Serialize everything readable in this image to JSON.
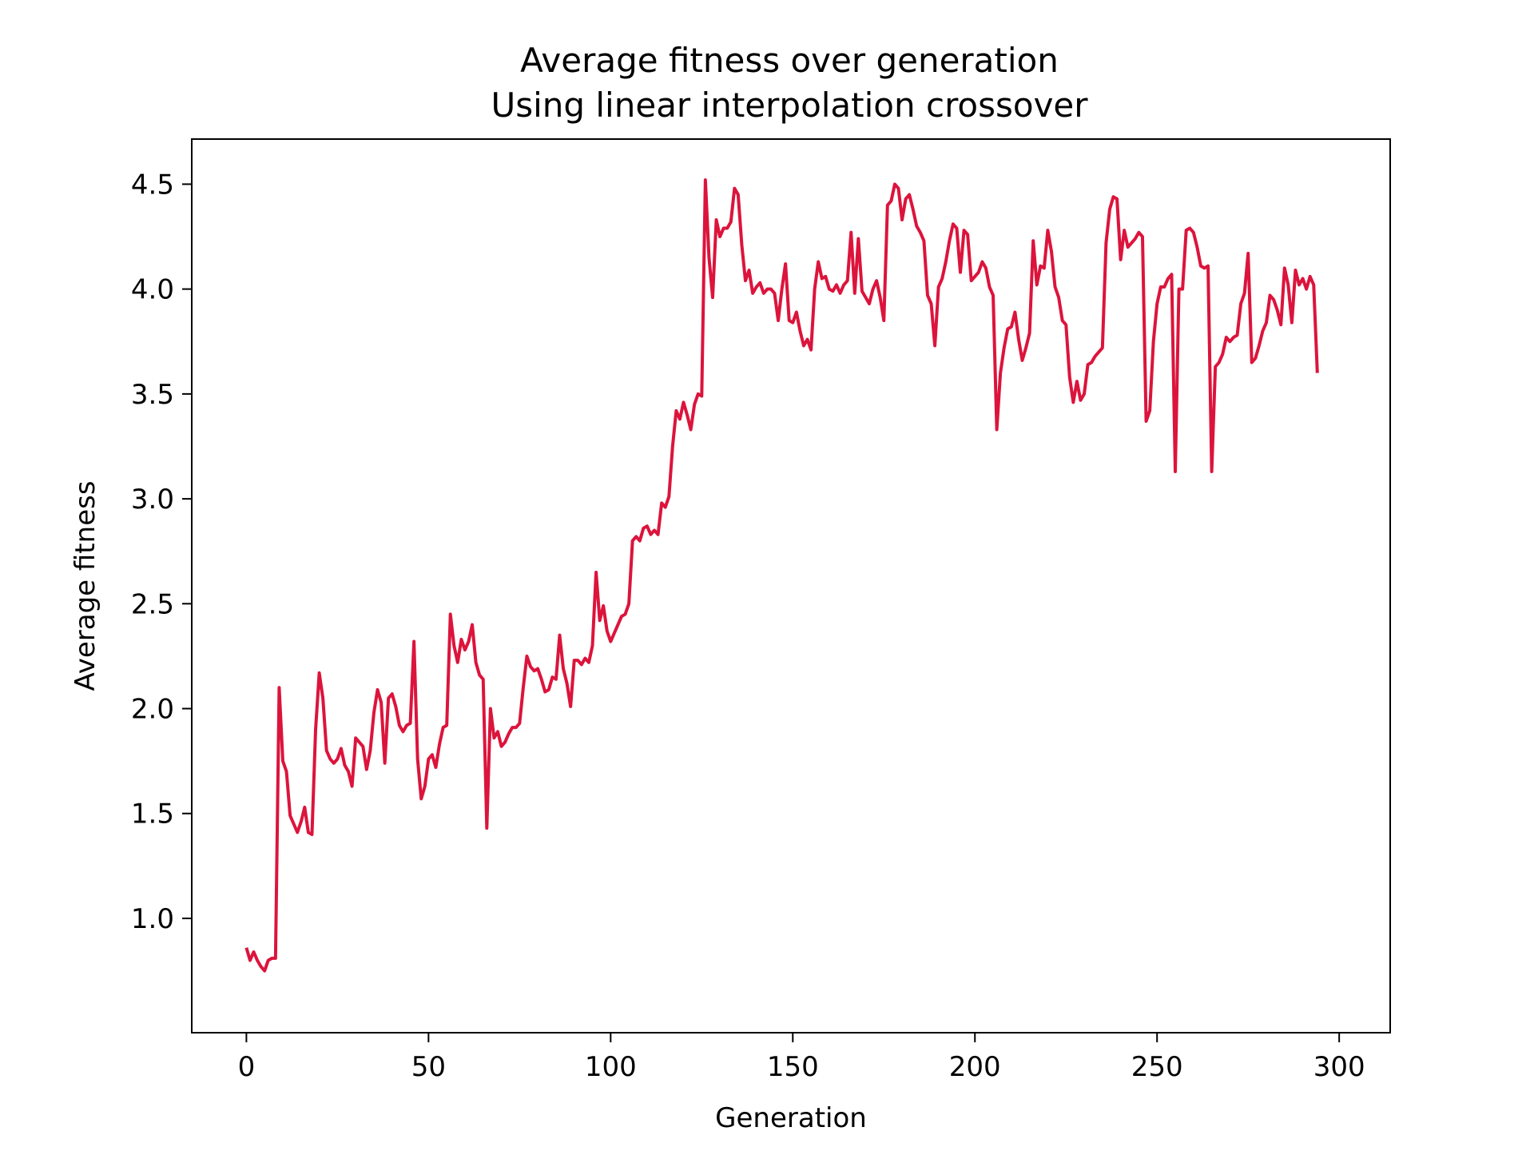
{
  "chart_data": {
    "type": "line",
    "title": "Average fitness over generation",
    "subtitle": "Using linear interpolation crossover",
    "xlabel": "Generation",
    "ylabel": "Average fitness",
    "xlim": [
      -15,
      314
    ],
    "ylim": [
      0.455,
      4.715
    ],
    "xticks": [
      0,
      50,
      100,
      150,
      200,
      250,
      300
    ],
    "xtick_labels": [
      "0",
      "50",
      "100",
      "150",
      "200",
      "250",
      "300"
    ],
    "yticks": [
      1.0,
      1.5,
      2.0,
      2.5,
      3.0,
      3.5,
      4.0,
      4.5
    ],
    "ytick_labels": [
      "1.0",
      "1.5",
      "2.0",
      "2.5",
      "3.0",
      "3.5",
      "4.0",
      "4.5"
    ],
    "grid": false,
    "line_color": "#dc143c",
    "series": [
      {
        "values": [
          0.86,
          0.8,
          0.84,
          0.8,
          0.77,
          0.75,
          0.8,
          0.81,
          0.81,
          2.1,
          1.75,
          1.7,
          1.49,
          1.45,
          1.41,
          1.46,
          1.53,
          1.41,
          1.4,
          1.9,
          2.17,
          2.05,
          1.8,
          1.76,
          1.74,
          1.76,
          1.81,
          1.73,
          1.7,
          1.63,
          1.86,
          1.84,
          1.82,
          1.71,
          1.8,
          1.98,
          2.09,
          2.03,
          1.74,
          2.05,
          2.07,
          2.01,
          1.92,
          1.89,
          1.92,
          1.93,
          2.32,
          1.76,
          1.57,
          1.63,
          1.76,
          1.78,
          1.72,
          1.83,
          1.91,
          1.92,
          2.45,
          2.3,
          2.22,
          2.33,
          2.28,
          2.32,
          2.4,
          2.22,
          2.16,
          2.14,
          1.43,
          2.0,
          1.86,
          1.89,
          1.82,
          1.84,
          1.88,
          1.91,
          1.91,
          1.93,
          2.1,
          2.25,
          2.2,
          2.18,
          2.19,
          2.14,
          2.08,
          2.09,
          2.15,
          2.14,
          2.35,
          2.19,
          2.12,
          2.01,
          2.23,
          2.23,
          2.21,
          2.24,
          2.22,
          2.3,
          2.65,
          2.42,
          2.49,
          2.37,
          2.32,
          2.36,
          2.4,
          2.44,
          2.45,
          2.5,
          2.8,
          2.82,
          2.8,
          2.86,
          2.87,
          2.83,
          2.85,
          2.83,
          2.98,
          2.96,
          3.01,
          3.25,
          3.42,
          3.38,
          3.46,
          3.4,
          3.33,
          3.45,
          3.5,
          3.49,
          4.52,
          4.15,
          3.96,
          4.33,
          4.25,
          4.29,
          4.29,
          4.32,
          4.48,
          4.45,
          4.21,
          4.04,
          4.09,
          3.98,
          4.01,
          4.03,
          3.98,
          4.0,
          4.0,
          3.98,
          3.85,
          4.0,
          4.12,
          3.85,
          3.84,
          3.89,
          3.8,
          3.73,
          3.76,
          3.71,
          4.0,
          4.13,
          4.05,
          4.06,
          4.0,
          3.99,
          4.02,
          3.98,
          4.02,
          4.04,
          4.27,
          3.98,
          4.24,
          3.99,
          3.96,
          3.93,
          4.0,
          4.04,
          3.96,
          3.85,
          4.4,
          4.42,
          4.5,
          4.48,
          4.33,
          4.43,
          4.45,
          4.38,
          4.3,
          4.27,
          4.23,
          3.97,
          3.93,
          3.73,
          4.01,
          4.05,
          4.13,
          4.23,
          4.31,
          4.29,
          4.08,
          4.28,
          4.26,
          4.04,
          4.06,
          4.08,
          4.13,
          4.1,
          4.01,
          3.97,
          3.33,
          3.6,
          3.72,
          3.81,
          3.82,
          3.89,
          3.76,
          3.66,
          3.72,
          3.79,
          4.23,
          4.02,
          4.11,
          4.1,
          4.28,
          4.18,
          4.01,
          3.96,
          3.85,
          3.83,
          3.58,
          3.46,
          3.56,
          3.47,
          3.5,
          3.64,
          3.65,
          3.68,
          3.7,
          3.72,
          4.22,
          4.38,
          4.44,
          4.43,
          4.14,
          4.28,
          4.2,
          4.22,
          4.24,
          4.27,
          4.25,
          3.37,
          3.42,
          3.75,
          3.93,
          4.01,
          4.01,
          4.05,
          4.07,
          3.13,
          4.0,
          4.0,
          4.28,
          4.29,
          4.27,
          4.2,
          4.11,
          4.1,
          4.11,
          3.13,
          3.63,
          3.65,
          3.69,
          3.77,
          3.75,
          3.77,
          3.78,
          3.93,
          3.98,
          4.17,
          3.65,
          3.67,
          3.73,
          3.8,
          3.84,
          3.97,
          3.95,
          3.9,
          3.83,
          4.1,
          4.02,
          3.84,
          4.09,
          4.02,
          4.05,
          4.0,
          4.06,
          4.02,
          3.6
        ]
      }
    ]
  }
}
